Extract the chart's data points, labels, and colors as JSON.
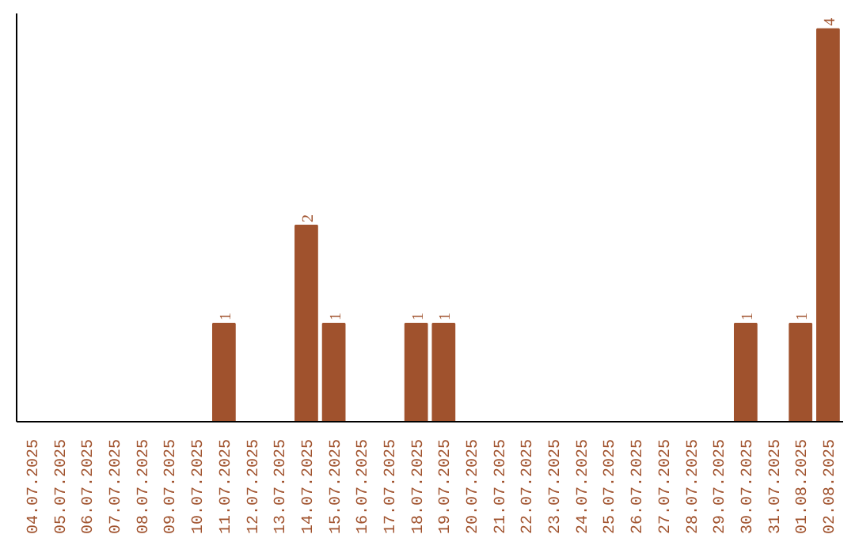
{
  "chart_data": {
    "type": "bar",
    "categories": [
      "04.07.2025",
      "05.07.2025",
      "06.07.2025",
      "07.07.2025",
      "08.07.2025",
      "09.07.2025",
      "10.07.2025",
      "11.07.2025",
      "12.07.2025",
      "13.07.2025",
      "14.07.2025",
      "15.07.2025",
      "16.07.2025",
      "17.07.2025",
      "18.07.2025",
      "19.07.2025",
      "20.07.2025",
      "21.07.2025",
      "22.07.2025",
      "23.07.2025",
      "24.07.2025",
      "25.07.2025",
      "26.07.2025",
      "27.07.2025",
      "28.07.2025",
      "29.07.2025",
      "30.07.2025",
      "31.07.2025",
      "01.08.2025",
      "02.08.2025"
    ],
    "values": [
      0,
      0,
      0,
      0,
      0,
      0,
      0,
      1,
      0,
      0,
      2,
      1,
      0,
      0,
      1,
      1,
      0,
      0,
      0,
      0,
      0,
      0,
      0,
      0,
      0,
      0,
      1,
      0,
      1,
      4
    ],
    "value_labels": [
      null,
      null,
      null,
      null,
      null,
      null,
      null,
      "1",
      null,
      null,
      "2",
      "1",
      null,
      null,
      "1",
      "1",
      null,
      null,
      null,
      null,
      null,
      null,
      null,
      null,
      null,
      null,
      "1",
      null,
      "1",
      "4"
    ],
    "color": "#a0522d",
    "grid": false,
    "tick_labels": "x"
  }
}
